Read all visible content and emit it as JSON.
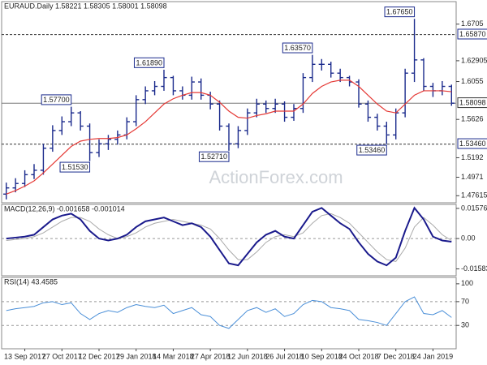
{
  "chart_data": [
    {
      "type": "ohlc",
      "title": "EURAUD.Daily  1.58221 1.58305 1.58001 1.58098",
      "watermark": "ActionForex.com",
      "color": "#1a2a8c",
      "open": [
        1.478,
        1.485,
        1.49,
        1.5,
        1.505,
        1.53,
        1.55,
        1.56,
        1.57,
        1.555,
        1.525,
        1.535,
        1.54,
        1.545,
        1.56,
        1.585,
        1.595,
        1.6,
        1.61,
        1.595,
        1.59,
        1.605,
        1.59,
        1.58,
        1.555,
        1.535,
        1.55,
        1.57,
        1.58,
        1.575,
        1.58,
        1.565,
        1.575,
        1.61,
        1.625,
        1.625,
        1.615,
        1.61,
        1.605,
        1.58,
        1.565,
        1.555,
        1.545,
        1.57,
        1.615,
        1.63,
        1.6,
        1.595,
        1.6
      ],
      "high": [
        1.491,
        1.496,
        1.505,
        1.512,
        1.535,
        1.556,
        1.566,
        1.577,
        1.572,
        1.558,
        1.54,
        1.545,
        1.55,
        1.565,
        1.59,
        1.6,
        1.606,
        1.6189,
        1.612,
        1.6,
        1.611,
        1.609,
        1.594,
        1.584,
        1.558,
        1.555,
        1.575,
        1.586,
        1.584,
        1.586,
        1.583,
        1.58,
        1.615,
        1.6357,
        1.631,
        1.628,
        1.62,
        1.612,
        1.608,
        1.584,
        1.569,
        1.56,
        1.575,
        1.62,
        1.6765,
        1.632,
        1.604,
        1.606,
        1.602
      ],
      "high_labels": [
        null,
        null,
        null,
        null,
        null,
        null,
        null,
        "1.57700",
        null,
        null,
        null,
        null,
        null,
        null,
        null,
        null,
        null,
        "1.61890",
        null,
        null,
        null,
        null,
        null,
        null,
        null,
        null,
        null,
        null,
        null,
        null,
        null,
        null,
        null,
        "1.63570",
        null,
        null,
        null,
        null,
        null,
        null,
        null,
        null,
        null,
        null,
        "1.67650",
        null,
        null,
        null,
        null
      ],
      "low": [
        1.472,
        1.48,
        1.486,
        1.495,
        1.5,
        1.526,
        1.545,
        1.555,
        1.55,
        1.5153,
        1.52,
        1.528,
        1.534,
        1.54,
        1.555,
        1.58,
        1.59,
        1.595,
        1.59,
        1.585,
        1.585,
        1.585,
        1.574,
        1.55,
        1.5271,
        1.53,
        1.545,
        1.565,
        1.57,
        1.57,
        1.56,
        1.561,
        1.57,
        1.605,
        1.618,
        1.61,
        1.605,
        1.6,
        1.576,
        1.56,
        1.55,
        1.5346,
        1.54,
        1.565,
        1.605,
        1.595,
        1.588,
        1.59,
        1.578
      ],
      "low_labels": [
        null,
        null,
        null,
        null,
        null,
        null,
        null,
        null,
        null,
        "1.51530",
        null,
        null,
        null,
        null,
        null,
        null,
        null,
        null,
        null,
        null,
        null,
        null,
        null,
        null,
        "1.52710",
        null,
        null,
        null,
        null,
        null,
        null,
        null,
        null,
        null,
        null,
        null,
        null,
        null,
        null,
        null,
        null,
        "1.53460",
        null,
        null,
        null,
        null,
        null,
        null,
        null
      ],
      "close": [
        1.485,
        1.49,
        1.5,
        1.505,
        1.53,
        1.55,
        1.56,
        1.57,
        1.555,
        1.525,
        1.535,
        1.54,
        1.545,
        1.56,
        1.585,
        1.595,
        1.6,
        1.61,
        1.595,
        1.59,
        1.605,
        1.59,
        1.58,
        1.555,
        1.535,
        1.55,
        1.57,
        1.58,
        1.575,
        1.58,
        1.565,
        1.575,
        1.61,
        1.625,
        1.625,
        1.615,
        1.61,
        1.605,
        1.58,
        1.565,
        1.555,
        1.545,
        1.57,
        1.615,
        1.63,
        1.6,
        1.595,
        1.6,
        1.58098
      ],
      "ma": {
        "color": "#e53935",
        "values": [
          1.478,
          1.482,
          1.487,
          1.493,
          1.502,
          1.512,
          1.522,
          1.532,
          1.538,
          1.54,
          1.541,
          1.541,
          1.542,
          1.545,
          1.552,
          1.56,
          1.57,
          1.58,
          1.586,
          1.59,
          1.593,
          1.593,
          1.59,
          1.582,
          1.572,
          1.565,
          1.564,
          1.567,
          1.569,
          1.572,
          1.572,
          1.572,
          1.58,
          1.592,
          1.6,
          1.605,
          1.607,
          1.607,
          1.6,
          1.59,
          1.58,
          1.572,
          1.57,
          1.58,
          1.59,
          1.595,
          1.595,
          1.595,
          1.594
        ]
      },
      "levels": [
        {
          "value": 1.6587,
          "label": "1.65870"
        },
        {
          "value": 1.5346,
          "label": "1.53460"
        }
      ],
      "last": {
        "value": 1.58098,
        "label": "1.58098"
      },
      "ylim": [
        1.47,
        1.685
      ],
      "yticks": [
        1.47615,
        1.4971,
        1.5192,
        1.5626,
        1.6055,
        1.62905,
        1.6705
      ]
    },
    {
      "type": "line",
      "title": "MACD(12,26,9) -0.001658 -0.001014",
      "series": [
        {
          "color": "#1a1a8c",
          "values": [
            0,
            0.0005,
            0.001,
            0.002,
            0.006,
            0.01,
            0.012,
            0.013,
            0.01,
            0.004,
            0,
            -0.001,
            0,
            0.002,
            0.006,
            0.009,
            0.01,
            0.011,
            0.009,
            0.007,
            0.008,
            0.006,
            0.001,
            -0.006,
            -0.013,
            -0.014,
            -0.008,
            -0.002,
            0.002,
            0.004,
            0.001,
            0,
            0.007,
            0.014,
            0.016,
            0.012,
            0.008,
            0.005,
            -0.002,
            -0.008,
            -0.012,
            -0.014,
            -0.01,
            0.004,
            0.016,
            0.01,
            0.001,
            -0.001,
            -0.001658
          ]
        },
        {
          "color": "#aaaaaa",
          "values": [
            -0.001,
            -0.0005,
            0,
            0.001,
            0.003,
            0.006,
            0.009,
            0.011,
            0.011,
            0.009,
            0.005,
            0.002,
            0,
            0.001,
            0.003,
            0.006,
            0.008,
            0.009,
            0.01,
            0.009,
            0.008,
            0.007,
            0.005,
            0,
            -0.006,
            -0.011,
            -0.011,
            -0.007,
            -0.002,
            0.001,
            0.002,
            0.001,
            0.003,
            0.008,
            0.012,
            0.013,
            0.011,
            0.008,
            0.003,
            -0.002,
            -0.007,
            -0.011,
            -0.012,
            -0.005,
            0.006,
            0.011,
            0.007,
            0.002,
            -0.001014
          ]
        }
      ],
      "reference_lines": [
        0
      ],
      "ylim": [
        -0.0186,
        0.017
      ],
      "yticks": [
        0.015762,
        {
          "value": 0,
          "label": "0.00"
        },
        -0.015834
      ]
    },
    {
      "type": "line",
      "title": "RSI(14) 43.4585",
      "series": [
        {
          "color": "#4a8fd8",
          "values": [
            55,
            58,
            60,
            62,
            68,
            70,
            65,
            68,
            50,
            40,
            50,
            55,
            52,
            60,
            65,
            62,
            60,
            64,
            50,
            55,
            60,
            48,
            45,
            30,
            25,
            40,
            55,
            60,
            52,
            58,
            45,
            50,
            65,
            72,
            70,
            60,
            58,
            55,
            40,
            38,
            35,
            30,
            50,
            70,
            78,
            50,
            48,
            55,
            43.4585
          ]
        }
      ],
      "reference_lines": [
        70,
        30
      ],
      "ylim": [
        -6.5,
        108
      ],
      "yticks": [
        100,
        70,
        30
      ],
      "categories": [
        null,
        null,
        "13 Sep 2017",
        null,
        null,
        null,
        "27 Oct 2017",
        null,
        null,
        null,
        "12 Dec 2017",
        null,
        null,
        null,
        "29 Jan 2018",
        null,
        null,
        null,
        "14 Mar 2018",
        null,
        null,
        null,
        "27 Apr 2018",
        null,
        null,
        null,
        "12 Jun 2018",
        null,
        null,
        null,
        "26 Jul 2018",
        null,
        null,
        null,
        "10 Sep 2018",
        null,
        null,
        null,
        "24 Oct 2018",
        null,
        null,
        null,
        "7 Dec 2018",
        null,
        null,
        null,
        "24 Jan 2019",
        null,
        null
      ]
    }
  ]
}
